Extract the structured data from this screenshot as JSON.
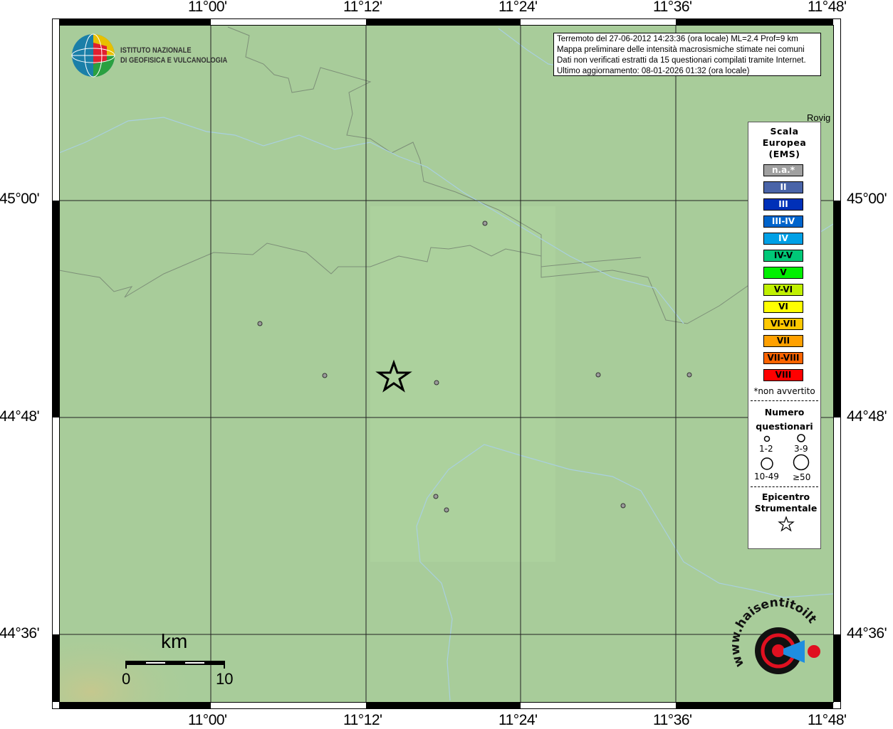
{
  "map": {
    "lon_ticks": [
      "11°00'",
      "11°12'",
      "11°24'",
      "11°36'",
      "11°48'"
    ],
    "lat_ticks": [
      "45°00'",
      "44°48'",
      "44°36'"
    ],
    "place_label": "Rovig",
    "colors": {
      "land": "#a8cc9a",
      "roads": "#7d8f78",
      "rivers": "#a9d0df",
      "station": "#9a9a9a"
    }
  },
  "header": {
    "institute_line1": "ISTITUTO NAZIONALE",
    "institute_line2": "DI GEOFISICA E VULCANOLOGIA"
  },
  "info": {
    "line1": "Terremoto del 27-06-2012 14:23:36 (ora locale) ML=2.4 Prof=9 km",
    "line2": "Mappa preliminare delle intensità macrosismiche stimate nei comuni",
    "line3": "Dati non verificati estratti da 15 questionari compilati tramite Internet.",
    "line4": "Ultimo aggiornamento: 08-01-2026 01:32 (ora locale)"
  },
  "legend": {
    "title_line1": "Scala",
    "title_line2": "Europea",
    "title_line3": "(EMS)",
    "classes": [
      {
        "label": "n.a.*",
        "color": "#a0a0a0",
        "text": "#ffffff"
      },
      {
        "label": "II",
        "color": "#4a64a8",
        "text": "#ffffff"
      },
      {
        "label": "III",
        "color": "#0030b8",
        "text": "#ffffff"
      },
      {
        "label": "III-IV",
        "color": "#0064cc",
        "text": "#ffffff"
      },
      {
        "label": "IV",
        "color": "#00a0e6",
        "text": "#ffffff"
      },
      {
        "label": "IV-V",
        "color": "#00c878",
        "text": "#000000"
      },
      {
        "label": "V",
        "color": "#00f000",
        "text": "#000000"
      },
      {
        "label": "V-VI",
        "color": "#c0f000",
        "text": "#000000"
      },
      {
        "label": "VI",
        "color": "#ffff00",
        "text": "#000000"
      },
      {
        "label": "VI-VII",
        "color": "#ffc800",
        "text": "#000000"
      },
      {
        "label": "VII",
        "color": "#ffa000",
        "text": "#000000"
      },
      {
        "label": "VII-VIII",
        "color": "#ff6400",
        "text": "#000000"
      },
      {
        "label": "VIII",
        "color": "#ff0000",
        "text": "#000000"
      }
    ],
    "note": "*non avvertito",
    "count_title_line1": "Numero",
    "count_title_line2": "questionari",
    "count_sizes": [
      "1-2",
      "3-9",
      "10-49",
      "≥50"
    ],
    "epicenter_line1": "Epicentro",
    "epicenter_line2": "Strumentale"
  },
  "scale_bar": {
    "unit": "km",
    "min": "0",
    "max": "10"
  },
  "watermark": "www.haisentitoilterremoto.it"
}
